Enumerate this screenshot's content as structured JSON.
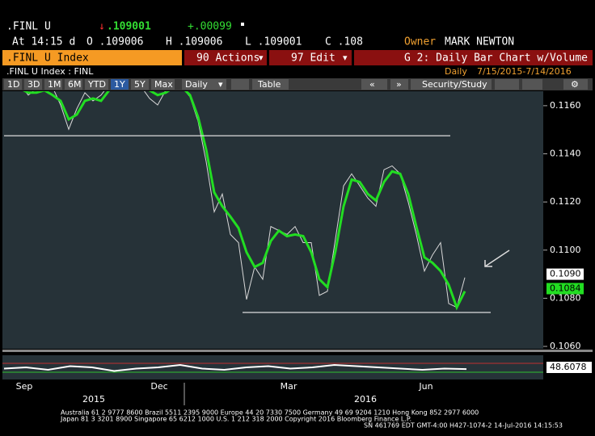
{
  "header": {
    "ticker": ".FINL U",
    "arrow": "↓",
    "last": ".109001",
    "change": "+.00099",
    "time": "At 14:15 d",
    "open": "O .109006",
    "high": "H .109006",
    "low": "L .109001",
    "close": "C .108",
    "owner_label": "Owner",
    "owner": "MARK NEWTON"
  },
  "toolbar": {
    "security": ".FINL U Index",
    "actions": "90 Actions",
    "edit": "97 Edit",
    "title": "G 2: Daily Bar Chart w/Volume"
  },
  "subheader": {
    "name": ".FINL U Index : FINL",
    "frequency": "Daily",
    "range": "7/15/2015-7/14/2016"
  },
  "controls": {
    "periods": [
      "1D",
      "3D",
      "1M",
      "6M",
      "YTD",
      "1Y",
      "5Y",
      "Max"
    ],
    "active": "1Y",
    "frequency": "Daily",
    "table": "Table",
    "study": "Security/Study"
  },
  "chart": {
    "type": "line",
    "ylim": [
      0.1059,
      0.1166
    ],
    "yticks": [
      {
        "value": 0.116,
        "label": "0.1160"
      },
      {
        "value": 0.114,
        "label": "0.1140"
      },
      {
        "value": 0.112,
        "label": "0.1120"
      },
      {
        "value": 0.11,
        "label": "0.1100"
      },
      {
        "value": 0.108,
        "label": "0.1080"
      },
      {
        "value": 0.106,
        "label": "0.1060"
      }
    ],
    "series": [
      {
        "color": "#d8d8d8",
        "values": [
          0.11677,
          0.11704,
          0.11688,
          0.11644,
          0.11671,
          0.11704,
          0.11677,
          0.11603,
          0.11502,
          0.11587,
          0.11654,
          0.1162,
          0.11644,
          0.11688,
          0.11704,
          0.11704,
          0.11698,
          0.11677,
          0.1163,
          0.11603,
          0.11664,
          0.11704,
          0.11677,
          0.11637,
          0.11536,
          0.11368,
          0.11159,
          0.11233,
          0.11065,
          0.11031,
          0.10795,
          0.1093,
          0.10879,
          0.11098,
          0.11081,
          0.11065,
          0.11098,
          0.11031,
          0.11031,
          0.10812,
          0.10829,
          0.11048,
          0.11267,
          0.11317,
          0.11267,
          0.11216,
          0.11182,
          0.11334,
          0.1135,
          0.11317,
          0.11199,
          0.11065,
          0.10913,
          0.1098,
          0.11031,
          0.10778,
          0.10762,
          0.10886
        ]
      },
      {
        "color": "#22dd22",
        "values": [
          0.11677,
          0.11688,
          0.11671,
          0.11654,
          0.11654,
          0.11664,
          0.11644,
          0.1162,
          0.11543,
          0.11563,
          0.1162,
          0.1163,
          0.1162,
          0.11664,
          0.11688,
          0.11698,
          0.11698,
          0.11688,
          0.11664,
          0.11644,
          0.11654,
          0.11677,
          0.11677,
          0.11644,
          0.11553,
          0.11418,
          0.1124,
          0.11182,
          0.11139,
          0.11092,
          0.10991,
          0.1093,
          0.10947,
          0.11038,
          0.11081,
          0.11058,
          0.11065,
          0.11058,
          0.10991,
          0.10879,
          0.10846,
          0.10997,
          0.11182,
          0.11293,
          0.11283,
          0.11233,
          0.11206,
          0.11283,
          0.11327,
          0.11317,
          0.11233,
          0.11098,
          0.1097,
          0.10947,
          0.10913,
          0.10856,
          0.10762,
          0.10829
        ]
      }
    ],
    "levels": [
      0.11475,
      0.10741
    ],
    "value_labels": [
      {
        "value": 0.109,
        "label": "0.1090",
        "color": "#ffffff"
      },
      {
        "value": 0.1084,
        "label": "0.1084",
        "color": "#22dd22"
      }
    ],
    "xlabels": [
      "Sep",
      "Dec",
      "Mar",
      "Jun"
    ],
    "years": [
      "2015",
      "2016"
    ],
    "lower": {
      "ylim": [
        40,
        60
      ],
      "values": [
        49,
        50,
        48,
        51,
        50,
        47,
        49,
        50,
        52,
        49,
        48,
        50,
        51,
        49,
        50,
        52,
        51,
        50,
        49,
        48,
        49,
        48.6078
      ],
      "last_value": 48.6078
    }
  },
  "footer": [
    "Australia 61 2 9777 8600 Brazil 5511 2395 9000 Europe 44 20 7330 7500 Germany 49 69 9204 1210 Hong Kong 852 2977 6000",
    "Japan 81 3 3201 8900       Singapore 65 6212 1000       U.S. 1 212 318 2000       Copyright 2016 Bloomberg Finance L.P.",
    "SN 461769 EDT  GMT-4:00 H427-1074-2 14-Jul-2016 14:15:53"
  ]
}
